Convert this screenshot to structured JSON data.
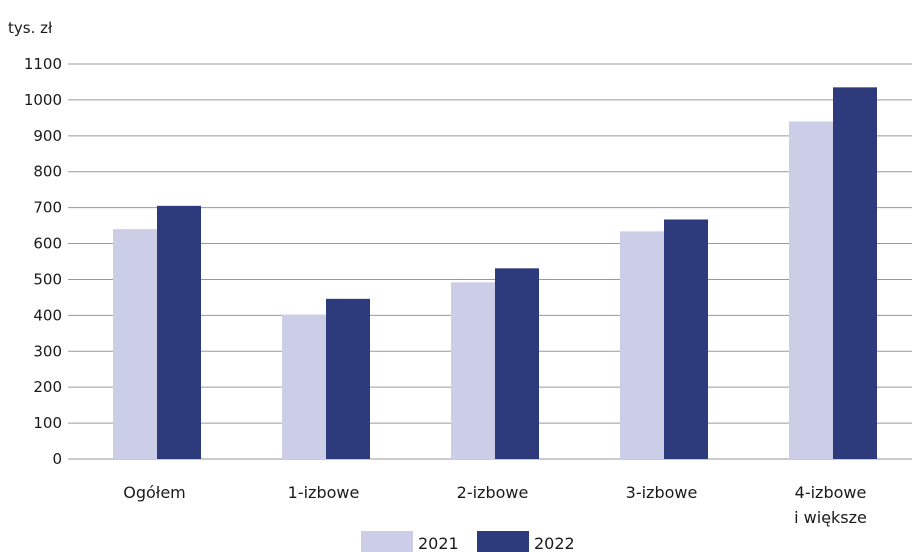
{
  "chart_data": {
    "type": "bar",
    "unit_label": "tys. zł",
    "categories": [
      [
        "Ogółem"
      ],
      [
        "1-izbowe"
      ],
      [
        "2-izbowe"
      ],
      [
        "3-izbowe"
      ],
      [
        "4-izbowe",
        "i większe"
      ]
    ],
    "series": [
      {
        "name": "2021",
        "color": "#cccde6",
        "values": [
          640,
          402,
          492,
          634,
          940
        ]
      },
      {
        "name": "2022",
        "color": "#2d3a7c",
        "values": [
          705,
          446,
          531,
          667,
          1035
        ]
      }
    ],
    "yticks": [
      0,
      100,
      200,
      300,
      400,
      500,
      600,
      700,
      800,
      900,
      1000,
      1100
    ],
    "ylim": [
      0,
      1100
    ],
    "grid": true,
    "grid_color": "#9a9a9a",
    "legend_position": "bottom-center"
  }
}
